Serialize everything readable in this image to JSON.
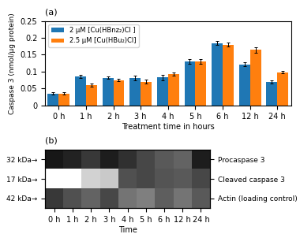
{
  "chart_data": [
    {
      "type": "bar",
      "title": "(a)",
      "xlabel": "Treatment time in hours",
      "ylabel": "Caspase 3 (nmol/μg protein)",
      "categories": [
        "0 h",
        "1 h",
        "2 h",
        "3 h",
        "4 h",
        "5 h",
        "6 h",
        "12 h",
        "24 h"
      ],
      "series": [
        {
          "name": "2 μM [Cu(HBnz₂)Cl ]",
          "values": [
            0.035,
            0.085,
            0.082,
            0.081,
            0.083,
            0.13,
            0.185,
            0.121,
            0.069
          ],
          "errors": [
            0.004,
            0.005,
            0.004,
            0.006,
            0.008,
            0.006,
            0.005,
            0.006,
            0.004
          ]
        },
        {
          "name": "2.5 μM [Cu(HBu₂)Cl]",
          "values": [
            0.035,
            0.06,
            0.075,
            0.07,
            0.092,
            0.13,
            0.18,
            0.165,
            0.098
          ],
          "errors": [
            0.003,
            0.004,
            0.004,
            0.006,
            0.005,
            0.006,
            0.006,
            0.008,
            0.004
          ]
        }
      ],
      "ylim": [
        0,
        0.25
      ],
      "yticks": [
        0,
        0.05,
        0.1,
        0.15,
        0.2,
        0.25
      ],
      "legend": "upper left"
    },
    {
      "type": "heatmap",
      "title": "(b)",
      "xlabel": "Time",
      "categories": [
        "0 h",
        "1 h",
        "2 h",
        "3 h",
        "4 h",
        "5 h",
        "6 h",
        "12 h",
        "24 h"
      ],
      "rows": [
        "Procaspase 3",
        "Cleaved caspase 3",
        "Actin (loading control)"
      ],
      "row_labels": [
        "32 kDa→",
        "17 kDa→",
        "42 kDa→"
      ],
      "cells": [
        [
          0.92,
          0.88,
          0.82,
          0.9,
          0.84,
          0.78,
          0.72,
          0.68,
          0.9
        ],
        [
          0.0,
          0.0,
          0.28,
          0.32,
          0.75,
          0.78,
          0.74,
          0.72,
          0.78
        ],
        [
          0.82,
          0.75,
          0.68,
          0.78,
          0.62,
          0.58,
          0.7,
          0.62,
          0.72
        ]
      ],
      "clim": [
        0,
        1
      ]
    }
  ]
}
